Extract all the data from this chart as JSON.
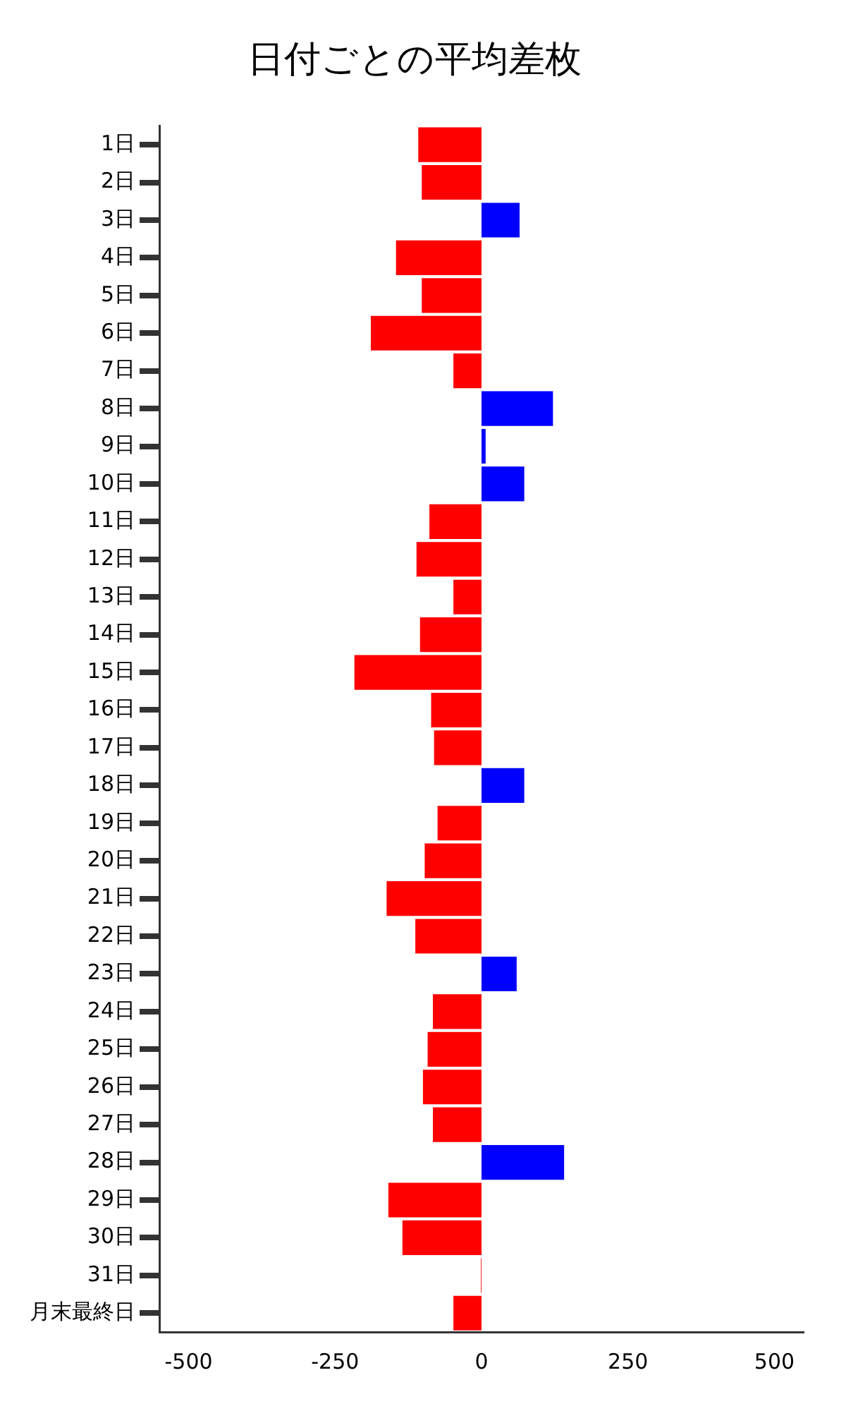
{
  "chart_data": {
    "type": "bar",
    "orientation": "horizontal",
    "title": "日付ごとの平均差枚",
    "categories": [
      "1日",
      "2日",
      "3日",
      "4日",
      "5日",
      "6日",
      "7日",
      "8日",
      "9日",
      "10日",
      "11日",
      "12日",
      "13日",
      "14日",
      "15日",
      "16日",
      "17日",
      "18日",
      "19日",
      "20日",
      "21日",
      "22日",
      "23日",
      "24日",
      "25日",
      "26日",
      "27日",
      "28日",
      "29日",
      "30日",
      "31日",
      "月末最終日"
    ],
    "values": [
      -108,
      -102,
      65,
      -146,
      -102,
      -189,
      -48,
      122,
      7,
      73,
      -89,
      -111,
      -48,
      -105,
      -217,
      -86,
      -81,
      73,
      -75,
      -97,
      -162,
      -113,
      60,
      -83,
      -92,
      -100,
      -83,
      141,
      -159,
      -135,
      -1,
      -48
    ],
    "colors": [
      "#ff0000",
      "#ff0000",
      "#0000ff",
      "#ff0000",
      "#ff0000",
      "#ff0000",
      "#ff0000",
      "#0000ff",
      "#0000ff",
      "#0000ff",
      "#ff0000",
      "#ff0000",
      "#ff0000",
      "#ff0000",
      "#ff0000",
      "#ff0000",
      "#ff0000",
      "#0000ff",
      "#ff0000",
      "#ff0000",
      "#ff0000",
      "#ff0000",
      "#0000ff",
      "#ff0000",
      "#ff0000",
      "#ff0000",
      "#ff0000",
      "#0000ff",
      "#ff0000",
      "#ff0000",
      "#ff0000",
      "#ff0000"
    ],
    "xlim": [
      -550,
      550
    ],
    "xticks": [
      -500,
      -250,
      0,
      250,
      500
    ],
    "grid": false,
    "legend": false
  }
}
